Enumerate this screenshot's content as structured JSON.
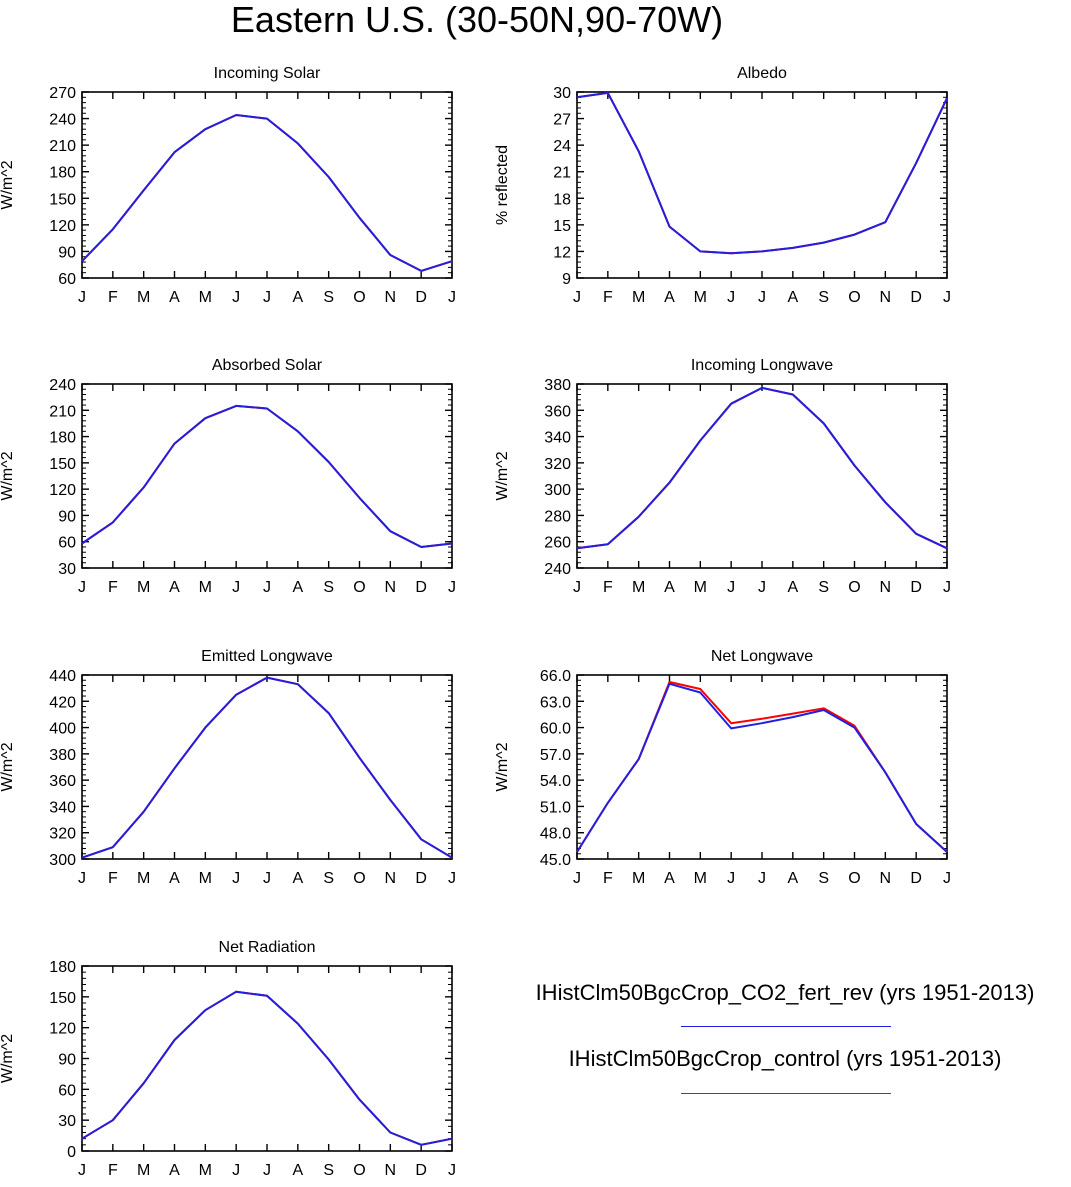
{
  "title": "Eastern U.S. (30-50N,90-70W)",
  "months": [
    "J",
    "F",
    "M",
    "A",
    "M",
    "J",
    "J",
    "A",
    "S",
    "O",
    "N",
    "D",
    "J"
  ],
  "colors": {
    "series1": "#2020e0",
    "series2": "#ff0000",
    "axis": "#000000"
  },
  "legend": [
    {
      "name": "IHistClm50BgcCrop_CO2_fert_rev (yrs 1951-2013)",
      "color": "#2020e0"
    },
    {
      "name": "IHistClm50BgcCrop_control (yrs 1951-2013)",
      "color": "#ff0000"
    }
  ],
  "chart_data": [
    {
      "type": "line",
      "title": "Incoming Solar",
      "ylabel": "W/m^2",
      "ylim": [
        60,
        270
      ],
      "yticks": [
        "60",
        "90",
        "120",
        "150",
        "180",
        "210",
        "240",
        "270"
      ],
      "series": [
        {
          "values": [
            79,
            115,
            159,
            202,
            228,
            244,
            240,
            212,
            174,
            128,
            86,
            68,
            79
          ]
        },
        {
          "values": [
            79,
            115,
            159,
            202,
            228,
            244,
            240,
            212,
            174,
            128,
            86,
            68,
            79
          ]
        }
      ]
    },
    {
      "type": "line",
      "title": "Albedo",
      "ylabel": "% reflected",
      "ylim": [
        9,
        30
      ],
      "yticks": [
        "9",
        "12",
        "15",
        "18",
        "21",
        "24",
        "27",
        "30"
      ],
      "series": [
        {
          "values": [
            29.4,
            29.9,
            23.3,
            14.8,
            12.0,
            11.8,
            12.0,
            12.4,
            13.0,
            13.9,
            15.3,
            22.0,
            29.3
          ]
        },
        {
          "values": [
            29.4,
            29.9,
            23.3,
            14.8,
            12.0,
            11.8,
            12.0,
            12.4,
            13.0,
            13.9,
            15.3,
            22.0,
            29.3
          ]
        }
      ]
    },
    {
      "type": "line",
      "title": "Absorbed Solar",
      "ylabel": "W/m^2",
      "ylim": [
        30,
        240
      ],
      "yticks": [
        "30",
        "60",
        "90",
        "120",
        "150",
        "180",
        "210",
        "240"
      ],
      "series": [
        {
          "values": [
            58,
            82,
            122,
            172,
            201,
            215,
            212,
            186,
            151,
            110,
            72,
            54,
            58
          ]
        },
        {
          "values": [
            58,
            82,
            122,
            172,
            201,
            215,
            212,
            186,
            151,
            110,
            72,
            54,
            58
          ]
        }
      ]
    },
    {
      "type": "line",
      "title": "Incoming Longwave",
      "ylabel": "W/m^2",
      "ylim": [
        240,
        380
      ],
      "yticks": [
        "240",
        "260",
        "280",
        "300",
        "320",
        "340",
        "360",
        "380"
      ],
      "series": [
        {
          "values": [
            255,
            258,
            279,
            305,
            337,
            365,
            377,
            372,
            350,
            318,
            290,
            266,
            255
          ]
        },
        {
          "values": [
            255,
            258,
            279,
            305,
            337,
            365,
            377,
            372,
            350,
            318,
            290,
            266,
            255
          ]
        }
      ]
    },
    {
      "type": "line",
      "title": "Emitted Longwave",
      "ylabel": "W/m^2",
      "ylim": [
        300,
        440
      ],
      "yticks": [
        "300",
        "320",
        "340",
        "360",
        "380",
        "400",
        "420",
        "440"
      ],
      "series": [
        {
          "values": [
            301,
            309,
            336,
            369,
            400,
            425,
            438,
            433,
            411,
            377,
            345,
            315,
            301
          ]
        },
        {
          "values": [
            301,
            309,
            336,
            369,
            400,
            425,
            438,
            433,
            411,
            377,
            345,
            315,
            301
          ]
        }
      ]
    },
    {
      "type": "line",
      "title": "Net Longwave",
      "ylabel": "W/m^2",
      "ylim": [
        45,
        66
      ],
      "yticks": [
        "45.0",
        "48.0",
        "51.0",
        "54.0",
        "57.0",
        "60.0",
        "63.0",
        "66.0"
      ],
      "series": [
        {
          "values": [
            45.8,
            51.4,
            56.4,
            65.0,
            64.0,
            59.9,
            60.5,
            61.2,
            62.0,
            60.0,
            54.9,
            49.0,
            45.8
          ]
        },
        {
          "values": [
            45.8,
            51.4,
            56.4,
            65.2,
            64.4,
            60.5,
            61.0,
            61.6,
            62.2,
            60.2,
            54.9,
            49.0,
            45.8
          ]
        }
      ]
    },
    {
      "type": "line",
      "title": "Net Radiation",
      "ylabel": "W/m^2",
      "ylim": [
        0,
        180
      ],
      "yticks": [
        "0",
        "30",
        "60",
        "90",
        "120",
        "150",
        "180"
      ],
      "series": [
        {
          "values": [
            12,
            30,
            66,
            108,
            137,
            155,
            151,
            124,
            89,
            50,
            18,
            6,
            12
          ]
        },
        {
          "values": [
            12,
            30,
            66,
            108,
            137,
            155,
            151,
            124,
            89,
            50,
            18,
            6,
            12
          ]
        }
      ]
    }
  ]
}
